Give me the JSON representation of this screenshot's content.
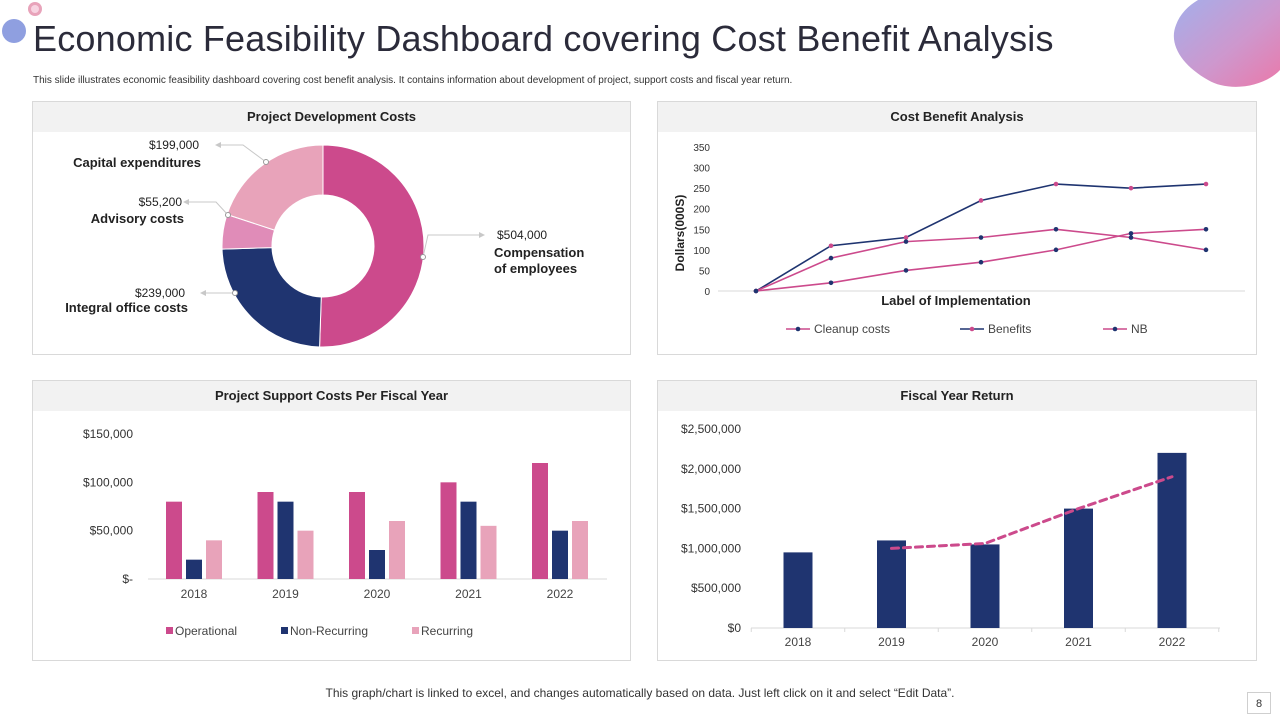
{
  "header": {
    "title": "Economic Feasibility Dashboard covering Cost Benefit Analysis",
    "subtitle": "This slide illustrates economic feasibility dashboard covering cost benefit analysis. It contains information about development of project, support costs and fiscal year return."
  },
  "colors": {
    "pink": "#cc4a8c",
    "navy": "#1f3470",
    "light_pink": "#e8a3ba",
    "mid_pink": "#e08cb8",
    "lavender": "#8f9fe0"
  },
  "footer": {
    "note": "This graph/chart is linked to excel,  and changes automatically based on data. Just left click on it and select “Edit Data”.",
    "page_number": "8"
  },
  "chart_data": [
    {
      "type": "pie",
      "title": "Project Development Costs",
      "slices": [
        {
          "name": "Compensation of employees",
          "value": 504000,
          "label": "$504,000",
          "color": "#cc4a8c"
        },
        {
          "name": "Integral office costs",
          "value": 239000,
          "label": "$239,000",
          "color": "#1f3470"
        },
        {
          "name": "Advisory  costs",
          "value": 55200,
          "label": "$55,200",
          "color": "#e08cb8"
        },
        {
          "name": "Capital expenditures",
          "value": 199000,
          "label": "$199,000",
          "color": "#e8a3ba"
        }
      ],
      "name_lines": {
        "comp": [
          "Compensation",
          "of employees"
        ],
        "integral": [
          "Integral office costs"
        ],
        "advisory": [
          "Advisory  costs"
        ],
        "capital": [
          "Capital expenditures"
        ]
      }
    },
    {
      "type": "line",
      "title": "Cost Benefit Analysis",
      "xlabel": "Label of Implementation",
      "ylabel": "Dollars(000S)",
      "ylim": [
        0,
        350
      ],
      "yticks": [
        0,
        50,
        100,
        150,
        200,
        250,
        300,
        350
      ],
      "x": [
        1,
        2,
        3,
        4,
        5,
        6,
        7
      ],
      "series": [
        {
          "name": "Cleanup costs",
          "values": [
            0,
            20,
            50,
            70,
            100,
            140,
            150
          ],
          "color": "#1f3470",
          "line_color": "#cc4a8c"
        },
        {
          "name": "Benefits",
          "values": [
            0,
            110,
            130,
            220,
            260,
            250,
            260
          ],
          "color": "#1f3470",
          "line_color": "#1f3470",
          "marker_color": "#cc4a8c"
        },
        {
          "name": "NB",
          "values": [
            0,
            80,
            120,
            130,
            150,
            130,
            100
          ],
          "color": "#cc4a8c",
          "line_color": "#cc4a8c",
          "marker_color": "#1f3470"
        }
      ],
      "legend": "bottom",
      "grid": false
    },
    {
      "type": "bar",
      "title": "Project Support Costs Per Fiscal Year",
      "categories": [
        "2018",
        "2019",
        "2020",
        "2021",
        "2022"
      ],
      "ylim": [
        0,
        150000
      ],
      "yticks": [
        0,
        50000,
        100000,
        150000
      ],
      "ytick_labels": [
        "$-",
        "$50,000",
        "$100,000",
        "$150,000"
      ],
      "series": [
        {
          "name": "Operational",
          "values": [
            80000,
            90000,
            90000,
            100000,
            120000
          ],
          "color": "#cc4a8c"
        },
        {
          "name": "Non-Recurring",
          "values": [
            20000,
            80000,
            30000,
            80000,
            50000
          ],
          "color": "#1f3470"
        },
        {
          "name": "Recurring",
          "values": [
            40000,
            50000,
            60000,
            55000,
            60000
          ],
          "color": "#e8a3ba"
        }
      ],
      "legend": "bottom",
      "grid": false
    },
    {
      "type": "bar",
      "title": "Fiscal Year Return",
      "categories": [
        "2018",
        "2019",
        "2020",
        "2021",
        "2022"
      ],
      "ylim": [
        0,
        2500000
      ],
      "yticks": [
        0,
        500000,
        1000000,
        1500000,
        2000000,
        2500000
      ],
      "ytick_labels": [
        "$0",
        "$500,000",
        "$1,000,000",
        "$1,500,000",
        "$2,000,000",
        "$2,500,000"
      ],
      "values": [
        950000,
        1100000,
        1050000,
        1500000,
        2200000
      ],
      "color": "#1f3470",
      "trend": {
        "from_category": "2019",
        "to_category": "2022",
        "values": [
          1000000,
          1062500,
          1500000,
          1900000
        ],
        "color": "#cc4a8c"
      },
      "grid": false
    }
  ]
}
